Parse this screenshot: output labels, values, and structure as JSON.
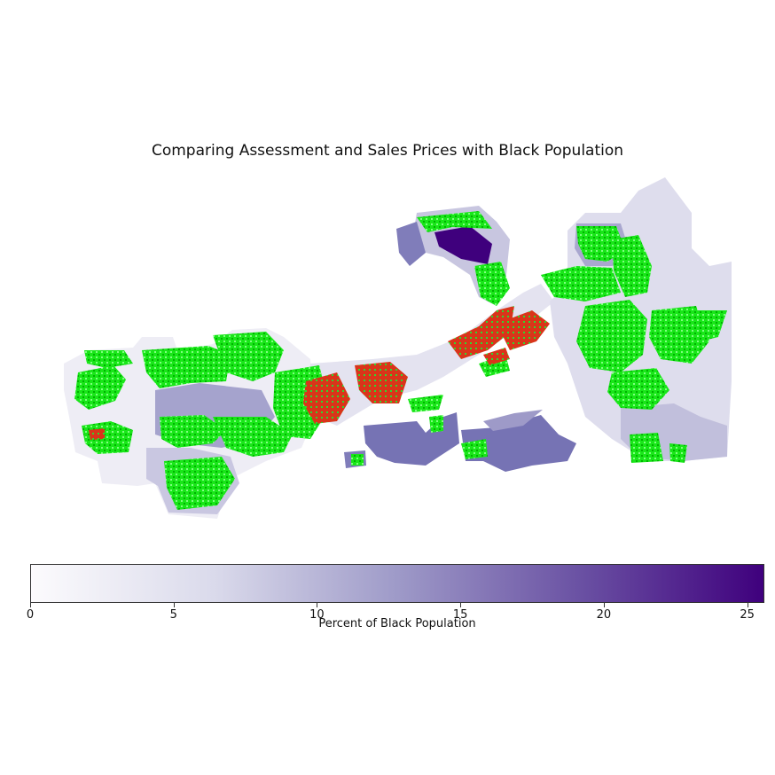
{
  "title": "Comparing Assessment and Sales Prices with Black Population",
  "colorbar": {
    "label": "Percent of Black Population",
    "min": 0,
    "max": 25.6,
    "ticks": [
      {
        "value": 0,
        "label": "0"
      },
      {
        "value": 5,
        "label": "5"
      },
      {
        "value": 10,
        "label": "10"
      },
      {
        "value": 15,
        "label": "15"
      },
      {
        "value": 20,
        "label": "20"
      },
      {
        "value": 25,
        "label": "25"
      }
    ],
    "colors": {
      "low": "#fcfbfd",
      "mid": "#9e9ac8",
      "high": "#3f007d"
    }
  },
  "overlay_colors": {
    "assessment_above": "#00ff00",
    "sales_above": "#ff3000"
  }
}
